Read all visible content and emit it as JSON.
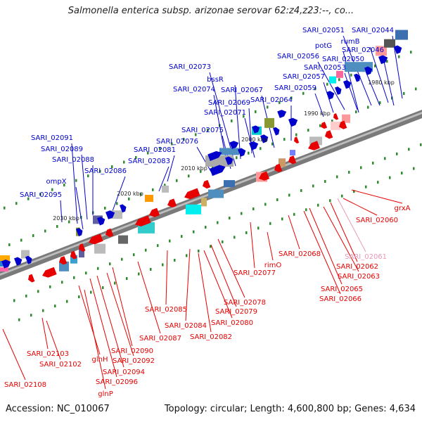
{
  "title": "Salmonella enterica subsp. arizonae serovar 62:z4,z23:--, co...",
  "footer": {
    "accession": "Accession: NC_010067",
    "info": "Topology: circular; Length: 4,600,800 bp; Genes: 4,634"
  },
  "colors": {
    "forward": "#0000cc",
    "reverse": "#e60000",
    "reverse_faint": "#e899b8",
    "backbone": "#777777",
    "tick": "#2e8b2e"
  },
  "ticks": [
    "1980 kbp",
    "1990 kbp",
    "2000 kbp",
    "2010 kbp",
    "2020 kbp",
    "2030 kbp"
  ],
  "labels_top": [
    "SARI_02051",
    "SARI_02044",
    "potG",
    "rumB",
    "SARI_02046",
    "SARI_02056",
    "SARI_02050",
    "SARI_02053",
    "SARI_02057",
    "SARI_02059",
    "SARI_02073",
    "bssR",
    "SARI_02074",
    "SARI_02067",
    "SARI_02069",
    "SARI_02064",
    "SARI_02071",
    "SARI_02075",
    "SARI_02076",
    "SARI_02081",
    "SARI_02083",
    "SARI_02086",
    "SARI_02088",
    "SARI_02089",
    "SARI_02091",
    "ompX",
    "SARI_02095"
  ],
  "labels_bottom": [
    "grxA",
    "SARI_02060",
    "SARI_02061",
    "SARI_02062",
    "SARI_02063",
    "SARI_02065",
    "SARI_02066",
    "SARI_02068",
    "rimO",
    "SARI_02077",
    "SARI_02078",
    "SARI_02079",
    "SARI_02080",
    "SARI_02082",
    "SARI_02084",
    "SARI_02085",
    "SARI_02087",
    "SARI_02090",
    "SARI_02092",
    "SARI_02094",
    "SARI_02096",
    "glnH",
    "glnP",
    "SARI_02103",
    "SARI_02102",
    "SARI_02108"
  ]
}
